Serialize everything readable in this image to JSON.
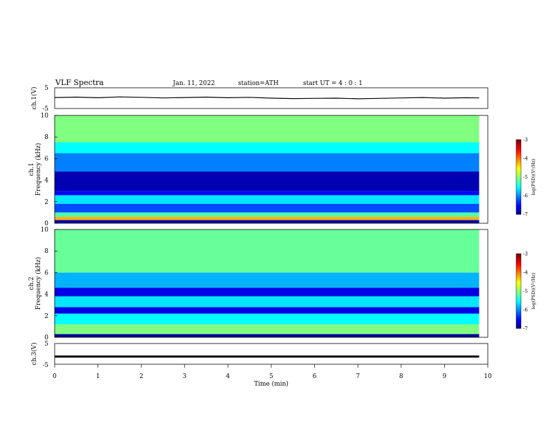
{
  "header": {
    "title": "VLF  Spectra",
    "date": "Jan.  11,  2022",
    "station": "station=ATH",
    "start": "start  UT  =   4  : 0  : 1"
  },
  "chart_data": [
    {
      "type": "line",
      "panel": "ch1-waveform",
      "ylabel": "ch.1(V)",
      "ylim": [
        -5,
        5
      ],
      "yticks": [
        "5",
        "-5"
      ],
      "xlim": [
        0,
        10
      ],
      "x": [
        0,
        0.5,
        1,
        1.5,
        2,
        2.5,
        3,
        3.5,
        4,
        4.5,
        5,
        5.5,
        6,
        6.5,
        7,
        7.5,
        8,
        8.5,
        9,
        9.5,
        9.8
      ],
      "values": [
        0.3,
        0.5,
        0.2,
        0.6,
        0.4,
        0.1,
        0.3,
        0.5,
        0.2,
        0.4,
        0.0,
        -0.2,
        -0.1,
        0.0,
        -0.3,
        -0.1,
        0.1,
        0.3,
        0.0,
        0.2,
        0.1
      ]
    },
    {
      "type": "heatmap",
      "panel": "ch1-spectrogram",
      "ylabel": "ch.1\nFrequency  (kHz)",
      "ylim": [
        0,
        10
      ],
      "yticks": [
        "0",
        "2",
        "4",
        "6",
        "8",
        "10"
      ],
      "xlim": [
        0,
        10
      ],
      "data_end_min": 9.8,
      "colorbar": {
        "label": "log(PSD)(V²/Hz)",
        "range": [
          -7,
          -3
        ],
        "ticks": [
          "-3",
          "-4",
          "-5",
          "-6",
          "-7"
        ]
      },
      "bands_log_psd": [
        {
          "f": [
            0,
            0.3
          ],
          "v": -6.8
        },
        {
          "f": [
            0.3,
            0.6
          ],
          "v": -4.2
        },
        {
          "f": [
            0.6,
            1.0
          ],
          "v": -5.2
        },
        {
          "f": [
            1.0,
            1.8
          ],
          "v": -6.2
        },
        {
          "f": [
            1.8,
            2.6
          ],
          "v": -5.6
        },
        {
          "f": [
            2.6,
            3.0
          ],
          "v": -6.5
        },
        {
          "f": [
            3.0,
            4.8
          ],
          "v": -6.8
        },
        {
          "f": [
            4.8,
            6.5
          ],
          "v": -6.0
        },
        {
          "f": [
            6.5,
            7.5
          ],
          "v": -5.5
        },
        {
          "f": [
            7.5,
            10.0
          ],
          "v": -5.0
        }
      ]
    },
    {
      "type": "heatmap",
      "panel": "ch2-spectrogram",
      "ylabel": "ch.2\nFrequency  (kHz)",
      "ylim": [
        0,
        10
      ],
      "yticks": [
        "0",
        "2",
        "4",
        "6",
        "8",
        "10"
      ],
      "xlim": [
        0,
        10
      ],
      "data_end_min": 9.8,
      "colorbar": {
        "label": "log(PSD)(V²/Hz)",
        "range": [
          -7,
          -3
        ],
        "ticks": [
          "-3",
          "-4",
          "-5",
          "-6",
          "-7"
        ]
      },
      "bands_log_psd": [
        {
          "f": [
            0,
            0.3
          ],
          "v": -6.9
        },
        {
          "f": [
            0.3,
            1.2
          ],
          "v": -5.0
        },
        {
          "f": [
            1.2,
            2.2
          ],
          "v": -5.5
        },
        {
          "f": [
            2.2,
            2.8
          ],
          "v": -6.6
        },
        {
          "f": [
            2.8,
            3.8
          ],
          "v": -5.6
        },
        {
          "f": [
            3.8,
            4.6
          ],
          "v": -6.6
        },
        {
          "f": [
            4.6,
            6.0
          ],
          "v": -5.8
        },
        {
          "f": [
            6.0,
            10.0
          ],
          "v": -5.1
        }
      ]
    },
    {
      "type": "line",
      "panel": "ch3-waveform",
      "ylabel": "ch.3(V)",
      "ylim": [
        -5,
        5
      ],
      "yticks": [
        "5",
        "-5"
      ],
      "xlim": [
        0,
        10
      ],
      "xlabel": "Time  (min)",
      "xticks": [
        "0",
        "1",
        "2",
        "3",
        "4",
        "5",
        "6",
        "7",
        "8",
        "9",
        "10"
      ],
      "x": [
        0,
        9.8
      ],
      "values": [
        -1.3,
        -1.3
      ]
    }
  ]
}
